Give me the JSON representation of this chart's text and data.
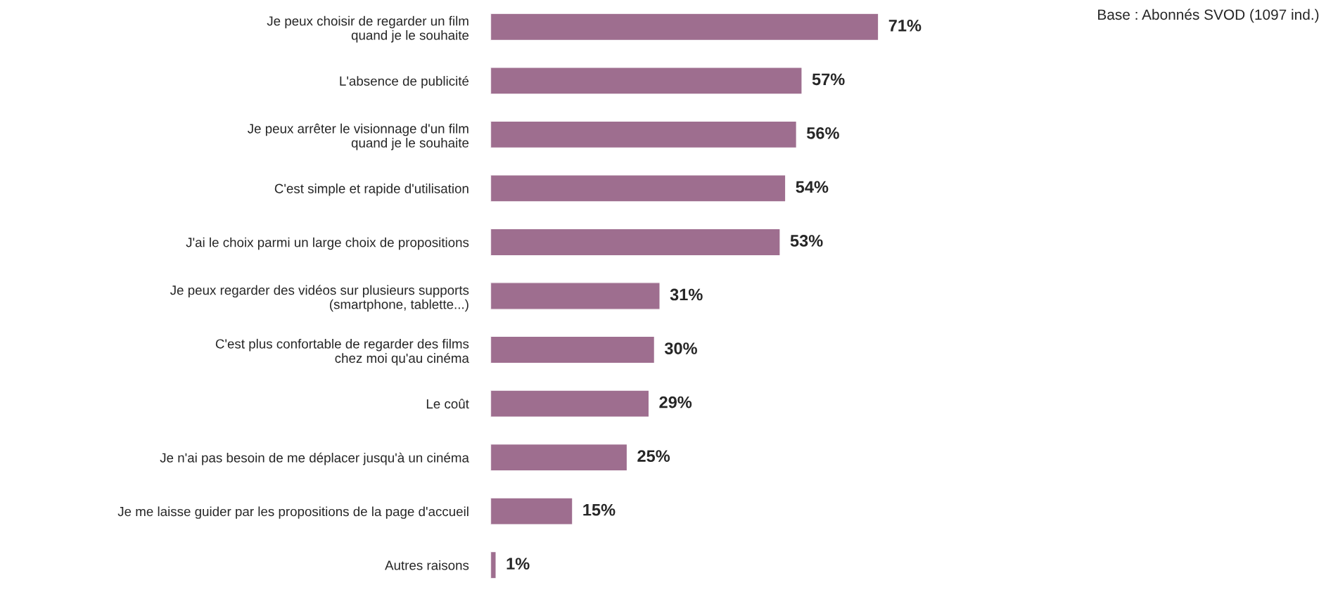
{
  "chart_data": {
    "type": "bar",
    "orientation": "horizontal",
    "categories": [
      "Je peux choisir de regarder un film\nquand je le souhaite",
      "L'absence de publicité",
      "Je peux arrêter le visionnage d'un film\nquand je le souhaite",
      "C'est simple et rapide d'utilisation",
      "J'ai le choix parmi un large choix de propositions",
      "Je peux regarder des vidéos sur plusieurs supports\n(smartphone, tablette...)",
      "C'est plus confortable de regarder des films\nchez moi qu'au cinéma",
      "Le coût",
      "Je n'ai pas besoin de me déplacer jusqu'à un cinéma",
      "Je me laisse guider par les propositions de la page d'accueil",
      "Autres raisons"
    ],
    "values": [
      71,
      57,
      56,
      54,
      53,
      31,
      30,
      29,
      25,
      15,
      1
    ],
    "value_labels": [
      "71%",
      "57%",
      "56%",
      "54%",
      "53%",
      "31%",
      "30%",
      "29%",
      "25%",
      "15%",
      "1%"
    ],
    "color": "#9e6e8f",
    "annotations": [
      "Base : Abonnés SVOD (1097 ind.)"
    ],
    "grid": false,
    "legend": false
  }
}
